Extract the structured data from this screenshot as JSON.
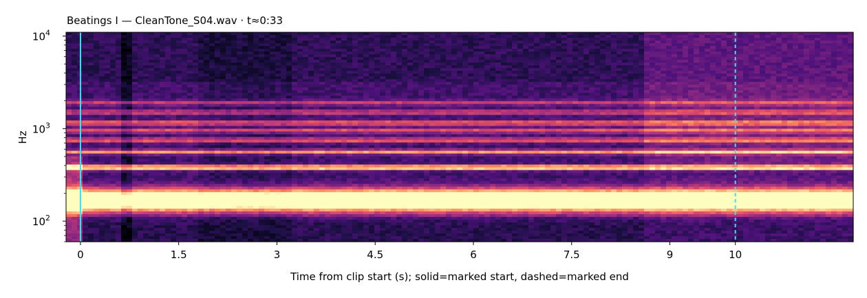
{
  "chart_data": {
    "type": "heatmap",
    "title": "Beatings I  —  CleanTone_S04.wav · t≈0:33",
    "xlabel": "Time from clip start (s); solid=marked start, dashed=marked end",
    "ylabel": "Hz",
    "xlim": [
      -0.22,
      11.8
    ],
    "ylim": [
      60,
      11000
    ],
    "yscale": "log",
    "colormap": "magma",
    "x_ticks": [
      {
        "value": 0,
        "label": "0"
      },
      {
        "value": 1.5,
        "label": "1.5"
      },
      {
        "value": 3,
        "label": "3"
      },
      {
        "value": 4.5,
        "label": "4.5"
      },
      {
        "value": 6,
        "label": "6"
      },
      {
        "value": 7.5,
        "label": "7.5"
      },
      {
        "value": 9,
        "label": "9"
      },
      {
        "value": 10,
        "label": "10"
      }
    ],
    "y_ticks": [
      {
        "value": 100,
        "base": "10",
        "exp": "2"
      },
      {
        "value": 1000,
        "base": "10",
        "exp": "3"
      },
      {
        "value": 10000,
        "base": "10",
        "exp": "4"
      }
    ],
    "markers": [
      {
        "name": "marked start",
        "x": 0,
        "style": "solid",
        "color": "#40e0f0"
      },
      {
        "name": "marked end",
        "x": 10.0,
        "style": "dashed",
        "color": "#40e0f0"
      }
    ],
    "bands": [
      {
        "freq": 185,
        "intensity": 0.92
      },
      {
        "freq": 150,
        "intensity": 0.8
      },
      {
        "freq": 380,
        "intensity": 1.0
      },
      {
        "freq": 560,
        "intensity": 0.68
      },
      {
        "freq": 750,
        "intensity": 0.55
      },
      {
        "freq": 950,
        "intensity": 0.5
      },
      {
        "freq": 1150,
        "intensity": 0.6
      },
      {
        "freq": 1500,
        "intensity": 0.45
      },
      {
        "freq": 1900,
        "intensity": 0.4
      }
    ]
  }
}
